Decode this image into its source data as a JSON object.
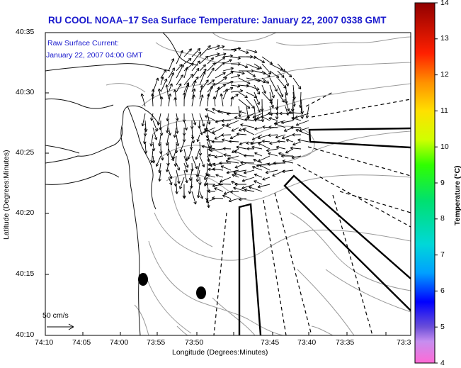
{
  "header": {
    "title": "RU COOL  NOAA–17  Sea Surface Temperature:  January 22, 2007 0338 GMT"
  },
  "map": {
    "annotation_line1": "Raw Surface Current:",
    "annotation_line2": "January 22, 2007 04:00 GMT",
    "scale_label": "50 cm/s",
    "x_axis_label": "Longitude (Degrees:Minutes)",
    "y_axis_label": "Latitude (Degrees:Minutes)",
    "x_ticks": [
      "74:10",
      "74:05",
      "74:00",
      "73:55",
      "73:50",
      "73:45",
      "73:40",
      "73:35",
      "73:3"
    ],
    "y_ticks": [
      "40:35",
      "40:30",
      "40:25",
      "40:20",
      "40:15",
      "40:10"
    ]
  },
  "colorbar": {
    "label": "Temperature (°C)",
    "min": 4,
    "max": 14,
    "ticks": [
      "14",
      "13",
      "12",
      "11",
      "10",
      "9",
      "8",
      "7",
      "6",
      "5",
      "4"
    ]
  },
  "colors": {
    "title": "#1a1acd",
    "frame": "#000000",
    "contour": "#9a9a9a",
    "coast": "#111111"
  },
  "icons": {
    "arrow": "vector-arrow",
    "buoy": "filled-ellipse"
  }
}
